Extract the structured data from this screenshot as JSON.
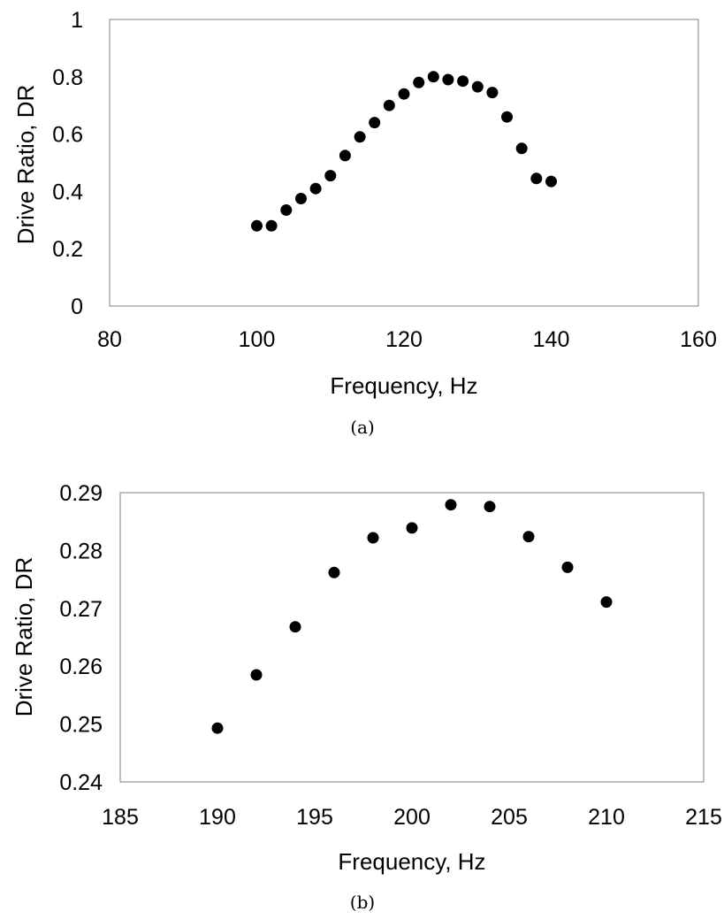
{
  "chart_data": [
    {
      "type": "scatter",
      "caption": "(a)",
      "xlabel": "Frequency, Hz",
      "ylabel": "Drive Ratio, DR",
      "xlim": [
        80,
        160
      ],
      "ylim": [
        0,
        1
      ],
      "xticks": [
        80,
        100,
        120,
        140,
        160
      ],
      "yticks": [
        0,
        0.2,
        0.4,
        0.6,
        0.8,
        1
      ],
      "xtick_labels": [
        "80",
        "100",
        "120",
        "140",
        "160"
      ],
      "ytick_labels": [
        "0",
        "0.2",
        "0.4",
        "0.6",
        "0.8",
        "1"
      ],
      "grid": false,
      "marker_color": "#000000",
      "points": [
        {
          "x": 100,
          "y": 0.28
        },
        {
          "x": 102,
          "y": 0.28
        },
        {
          "x": 104,
          "y": 0.335
        },
        {
          "x": 106,
          "y": 0.375
        },
        {
          "x": 108,
          "y": 0.41
        },
        {
          "x": 110,
          "y": 0.455
        },
        {
          "x": 112,
          "y": 0.525
        },
        {
          "x": 114,
          "y": 0.59
        },
        {
          "x": 116,
          "y": 0.64
        },
        {
          "x": 118,
          "y": 0.7
        },
        {
          "x": 120,
          "y": 0.74
        },
        {
          "x": 122,
          "y": 0.78
        },
        {
          "x": 124,
          "y": 0.8
        },
        {
          "x": 126,
          "y": 0.79
        },
        {
          "x": 128,
          "y": 0.785
        },
        {
          "x": 130,
          "y": 0.765
        },
        {
          "x": 132,
          "y": 0.745
        },
        {
          "x": 134,
          "y": 0.66
        },
        {
          "x": 136,
          "y": 0.55
        },
        {
          "x": 138,
          "y": 0.445
        },
        {
          "x": 140,
          "y": 0.435
        }
      ]
    },
    {
      "type": "scatter",
      "caption": "(b)",
      "xlabel": "Frequency, Hz",
      "ylabel": "Drive Ratio, DR",
      "xlim": [
        185,
        215
      ],
      "ylim": [
        0.24,
        0.29
      ],
      "xticks": [
        185,
        190,
        195,
        200,
        205,
        210,
        215
      ],
      "yticks": [
        0.24,
        0.25,
        0.26,
        0.27,
        0.28,
        0.29
      ],
      "xtick_labels": [
        "185",
        "190",
        "195",
        "200",
        "205",
        "210",
        "215"
      ],
      "ytick_labels": [
        "0.24",
        "0.25",
        "0.26",
        "0.27",
        "0.28",
        "0.29"
      ],
      "grid": false,
      "marker_color": "#000000",
      "points": [
        {
          "x": 190,
          "y": 0.2493
        },
        {
          "x": 192,
          "y": 0.2585
        },
        {
          "x": 194,
          "y": 0.2668
        },
        {
          "x": 196,
          "y": 0.2762
        },
        {
          "x": 198,
          "y": 0.2822
        },
        {
          "x": 200,
          "y": 0.2839
        },
        {
          "x": 202,
          "y": 0.2879
        },
        {
          "x": 204,
          "y": 0.2876
        },
        {
          "x": 206,
          "y": 0.2824
        },
        {
          "x": 208,
          "y": 0.2771
        },
        {
          "x": 210,
          "y": 0.2711
        }
      ]
    }
  ]
}
